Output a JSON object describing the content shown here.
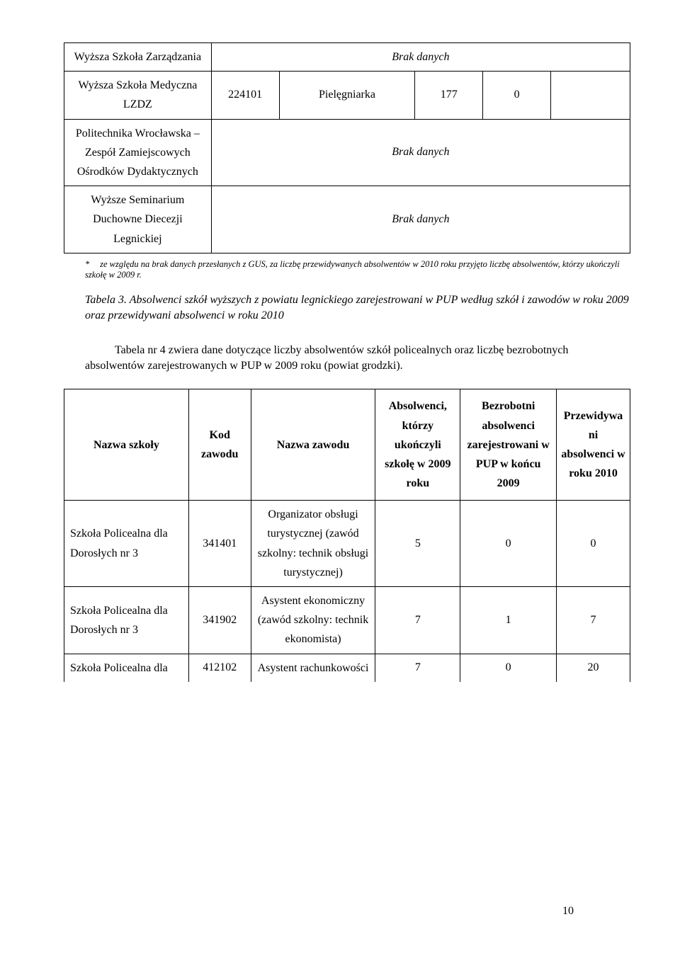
{
  "topTable": {
    "col_widths": [
      "26%",
      "12%",
      "24%",
      "12%",
      "12%",
      "14%"
    ],
    "rows": [
      {
        "c0": "Wyższa Szkoła Zarządzania",
        "merge_rest": true,
        "rest_text": "Brak danych",
        "rest_italic": true,
        "c0_align": "center"
      },
      {
        "c0": "Wyższa Szkoła Medyczna LZDZ",
        "c1": "224101",
        "c2": "Pielęgniarka",
        "c3": "177",
        "c4": "0",
        "c5": "",
        "c0_align": "center"
      },
      {
        "c0": "Politechnika Wrocławska – Zespół Zamiejscowych Ośrodków Dydaktycznych",
        "merge_rest": true,
        "rest_text": "Brak danych",
        "rest_italic": true,
        "c0_align": "center"
      },
      {
        "c0": "Wyższe Seminarium Duchowne Diecezji Legnickiej",
        "merge_rest": true,
        "rest_text": "Brak danych",
        "rest_italic": true,
        "c0_align": "center"
      }
    ],
    "footnote_star": "*",
    "footnote_text": "ze względu na brak danych przesłanych z GUS, za liczbę przewidywanych absolwentów w 2010 roku przyjęto liczbę absolwentów, którzy ukończyli szkołę w 2009 r."
  },
  "caption": "Tabela 3. Absolwenci szkół wyższych z powiatu legnickiego zarejestrowani w PUP według szkół i zawodów w roku 2009 oraz przewidywani absolwenci w roku 2010",
  "paragraph": "Tabela nr 4 zwiera dane dotyczące liczby absolwentów szkół policealnych oraz liczbę bezrobotnych absolwentów zarejestrowanych w PUP w 2009 roku (powiat grodzki).",
  "bottomTable": {
    "col_widths": [
      "22%",
      "11%",
      "22%",
      "15%",
      "17%",
      "13%"
    ],
    "headers": {
      "h0": "Nazwa szkoły",
      "h1": "Kod zawodu",
      "h2": "Nazwa zawodu",
      "h3": "Absolwenci, którzy ukończyli szkołę w 2009 roku",
      "h4": "Bezrobotni absolwenci zarejestrowani w PUP w końcu 2009",
      "h5": "Przewidywani absolwenci w roku 2010"
    },
    "rows": [
      {
        "c0": "Szkoła Policealna dla Dorosłych nr 3",
        "c1": "341401",
        "c2": "Organizator obsługi turystycznej (zawód szkolny: technik obsługi turystycznej)",
        "c3": "5",
        "c4": "0",
        "c5": "0"
      },
      {
        "c0": "Szkoła Policealna dla Dorosłych nr 3",
        "c1": "341902",
        "c2": "Asystent ekonomiczny (zawód szkolny: technik ekonomista)",
        "c3": "7",
        "c4": "1",
        "c5": "7"
      },
      {
        "c0": "Szkoła Policealna dla",
        "c1": "412102",
        "c2": "Asystent rachunkowości",
        "c3": "7",
        "c4": "0",
        "c5": "20",
        "no_bottom": true
      }
    ]
  },
  "page_number": "10"
}
